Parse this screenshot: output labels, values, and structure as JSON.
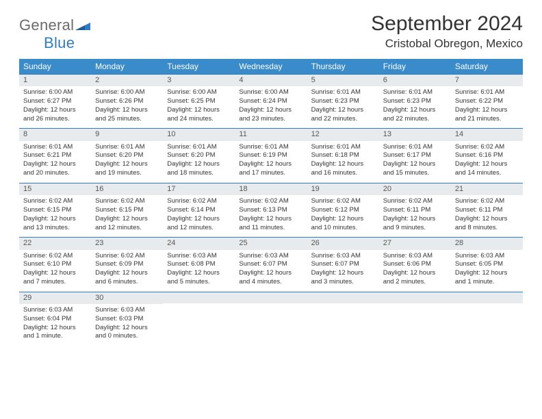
{
  "brand": {
    "general": "General",
    "blue": "Blue"
  },
  "title": "September 2024",
  "location": "Cristobal Obregon, Mexico",
  "colors": {
    "header_bg": "#3a8bc9",
    "band_bg": "#e7ebee",
    "rule": "#2f7dc0",
    "text": "#333333",
    "logo_gray": "#6b6b6b",
    "logo_blue": "#2f7dc0"
  },
  "dow": [
    "Sunday",
    "Monday",
    "Tuesday",
    "Wednesday",
    "Thursday",
    "Friday",
    "Saturday"
  ],
  "weeks": [
    [
      {
        "n": "1",
        "sr": "Sunrise: 6:00 AM",
        "ss": "Sunset: 6:27 PM",
        "d1": "Daylight: 12 hours",
        "d2": "and 26 minutes."
      },
      {
        "n": "2",
        "sr": "Sunrise: 6:00 AM",
        "ss": "Sunset: 6:26 PM",
        "d1": "Daylight: 12 hours",
        "d2": "and 25 minutes."
      },
      {
        "n": "3",
        "sr": "Sunrise: 6:00 AM",
        "ss": "Sunset: 6:25 PM",
        "d1": "Daylight: 12 hours",
        "d2": "and 24 minutes."
      },
      {
        "n": "4",
        "sr": "Sunrise: 6:00 AM",
        "ss": "Sunset: 6:24 PM",
        "d1": "Daylight: 12 hours",
        "d2": "and 23 minutes."
      },
      {
        "n": "5",
        "sr": "Sunrise: 6:01 AM",
        "ss": "Sunset: 6:23 PM",
        "d1": "Daylight: 12 hours",
        "d2": "and 22 minutes."
      },
      {
        "n": "6",
        "sr": "Sunrise: 6:01 AM",
        "ss": "Sunset: 6:23 PM",
        "d1": "Daylight: 12 hours",
        "d2": "and 22 minutes."
      },
      {
        "n": "7",
        "sr": "Sunrise: 6:01 AM",
        "ss": "Sunset: 6:22 PM",
        "d1": "Daylight: 12 hours",
        "d2": "and 21 minutes."
      }
    ],
    [
      {
        "n": "8",
        "sr": "Sunrise: 6:01 AM",
        "ss": "Sunset: 6:21 PM",
        "d1": "Daylight: 12 hours",
        "d2": "and 20 minutes."
      },
      {
        "n": "9",
        "sr": "Sunrise: 6:01 AM",
        "ss": "Sunset: 6:20 PM",
        "d1": "Daylight: 12 hours",
        "d2": "and 19 minutes."
      },
      {
        "n": "10",
        "sr": "Sunrise: 6:01 AM",
        "ss": "Sunset: 6:20 PM",
        "d1": "Daylight: 12 hours",
        "d2": "and 18 minutes."
      },
      {
        "n": "11",
        "sr": "Sunrise: 6:01 AM",
        "ss": "Sunset: 6:19 PM",
        "d1": "Daylight: 12 hours",
        "d2": "and 17 minutes."
      },
      {
        "n": "12",
        "sr": "Sunrise: 6:01 AM",
        "ss": "Sunset: 6:18 PM",
        "d1": "Daylight: 12 hours",
        "d2": "and 16 minutes."
      },
      {
        "n": "13",
        "sr": "Sunrise: 6:01 AM",
        "ss": "Sunset: 6:17 PM",
        "d1": "Daylight: 12 hours",
        "d2": "and 15 minutes."
      },
      {
        "n": "14",
        "sr": "Sunrise: 6:02 AM",
        "ss": "Sunset: 6:16 PM",
        "d1": "Daylight: 12 hours",
        "d2": "and 14 minutes."
      }
    ],
    [
      {
        "n": "15",
        "sr": "Sunrise: 6:02 AM",
        "ss": "Sunset: 6:15 PM",
        "d1": "Daylight: 12 hours",
        "d2": "and 13 minutes."
      },
      {
        "n": "16",
        "sr": "Sunrise: 6:02 AM",
        "ss": "Sunset: 6:15 PM",
        "d1": "Daylight: 12 hours",
        "d2": "and 12 minutes."
      },
      {
        "n": "17",
        "sr": "Sunrise: 6:02 AM",
        "ss": "Sunset: 6:14 PM",
        "d1": "Daylight: 12 hours",
        "d2": "and 12 minutes."
      },
      {
        "n": "18",
        "sr": "Sunrise: 6:02 AM",
        "ss": "Sunset: 6:13 PM",
        "d1": "Daylight: 12 hours",
        "d2": "and 11 minutes."
      },
      {
        "n": "19",
        "sr": "Sunrise: 6:02 AM",
        "ss": "Sunset: 6:12 PM",
        "d1": "Daylight: 12 hours",
        "d2": "and 10 minutes."
      },
      {
        "n": "20",
        "sr": "Sunrise: 6:02 AM",
        "ss": "Sunset: 6:11 PM",
        "d1": "Daylight: 12 hours",
        "d2": "and 9 minutes."
      },
      {
        "n": "21",
        "sr": "Sunrise: 6:02 AM",
        "ss": "Sunset: 6:11 PM",
        "d1": "Daylight: 12 hours",
        "d2": "and 8 minutes."
      }
    ],
    [
      {
        "n": "22",
        "sr": "Sunrise: 6:02 AM",
        "ss": "Sunset: 6:10 PM",
        "d1": "Daylight: 12 hours",
        "d2": "and 7 minutes."
      },
      {
        "n": "23",
        "sr": "Sunrise: 6:02 AM",
        "ss": "Sunset: 6:09 PM",
        "d1": "Daylight: 12 hours",
        "d2": "and 6 minutes."
      },
      {
        "n": "24",
        "sr": "Sunrise: 6:03 AM",
        "ss": "Sunset: 6:08 PM",
        "d1": "Daylight: 12 hours",
        "d2": "and 5 minutes."
      },
      {
        "n": "25",
        "sr": "Sunrise: 6:03 AM",
        "ss": "Sunset: 6:07 PM",
        "d1": "Daylight: 12 hours",
        "d2": "and 4 minutes."
      },
      {
        "n": "26",
        "sr": "Sunrise: 6:03 AM",
        "ss": "Sunset: 6:07 PM",
        "d1": "Daylight: 12 hours",
        "d2": "and 3 minutes."
      },
      {
        "n": "27",
        "sr": "Sunrise: 6:03 AM",
        "ss": "Sunset: 6:06 PM",
        "d1": "Daylight: 12 hours",
        "d2": "and 2 minutes."
      },
      {
        "n": "28",
        "sr": "Sunrise: 6:03 AM",
        "ss": "Sunset: 6:05 PM",
        "d1": "Daylight: 12 hours",
        "d2": "and 1 minute."
      }
    ],
    [
      {
        "n": "29",
        "sr": "Sunrise: 6:03 AM",
        "ss": "Sunset: 6:04 PM",
        "d1": "Daylight: 12 hours",
        "d2": "and 1 minute."
      },
      {
        "n": "30",
        "sr": "Sunrise: 6:03 AM",
        "ss": "Sunset: 6:03 PM",
        "d1": "Daylight: 12 hours",
        "d2": "and 0 minutes."
      },
      null,
      null,
      null,
      null,
      null
    ]
  ]
}
